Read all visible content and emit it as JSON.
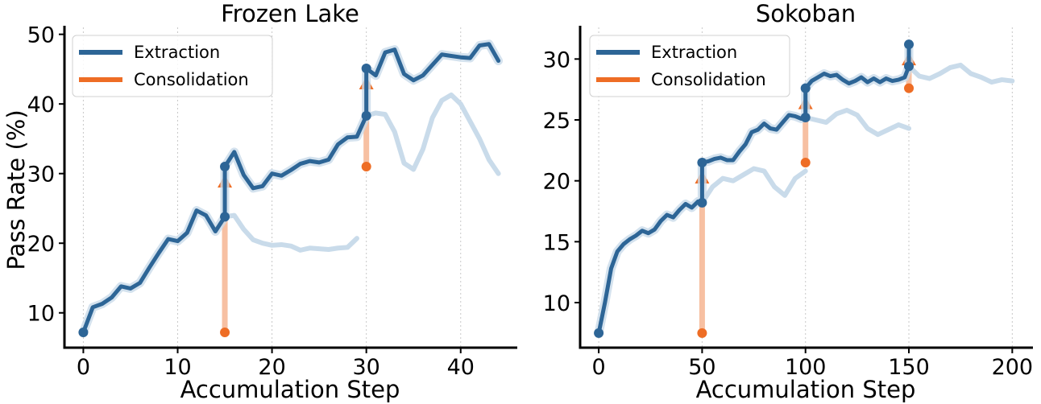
{
  "colors": {
    "extraction": "#2d6596",
    "extraction_faded": "#c9dbea",
    "consolidation": "#ee6d25",
    "consolidation_faded": "#f7c0a2",
    "grid": "#c8c8c8",
    "axis": "#000000"
  },
  "chart_data": [
    {
      "type": "line",
      "title": "Frozen Lake",
      "xlabel": "Accumulation Step",
      "ylabel": "Pass Rate (%)",
      "xlim": [
        -2,
        46
      ],
      "ylim": [
        5,
        51
      ],
      "xticks": [
        0,
        10,
        20,
        30,
        40
      ],
      "yticks": [
        10,
        20,
        30,
        40,
        50
      ],
      "grid": "x-dotted",
      "legend": {
        "position": "top-left",
        "entries": [
          "Extraction",
          "Consolidation"
        ]
      },
      "series": [
        {
          "name": "Extraction",
          "x": [
            0,
            1,
            2,
            3,
            4,
            5,
            6,
            7,
            8,
            9,
            10,
            11,
            12,
            13,
            14,
            15,
            15,
            16,
            17,
            18,
            19,
            20,
            21,
            22,
            23,
            24,
            25,
            26,
            27,
            28,
            29,
            30,
            30,
            31,
            32,
            33,
            34,
            35,
            36,
            37,
            38,
            39,
            40,
            41,
            42,
            43,
            44
          ],
          "y": [
            7.2,
            10.8,
            11.3,
            12.2,
            13.8,
            13.5,
            14.3,
            16.5,
            18.6,
            20.6,
            20.3,
            21.5,
            24.7,
            24.0,
            21.7,
            23.8,
            31.0,
            33.1,
            29.8,
            27.9,
            28.2,
            30.0,
            29.7,
            30.5,
            31.4,
            31.8,
            31.6,
            32.0,
            34.2,
            35.2,
            35.3,
            38.3,
            45.1,
            44.1,
            47.4,
            47.8,
            44.3,
            43.4,
            44.1,
            45.6,
            47.1,
            46.9,
            46.7,
            46.6,
            48.4,
            48.6,
            46.2
          ]
        },
        {
          "name": "Extraction (without consolidation)",
          "faded": true,
          "x": [
            15,
            16,
            17,
            18,
            19,
            20,
            21,
            22,
            23,
            24,
            25,
            26,
            27,
            28,
            29
          ],
          "y": [
            23.8,
            24.0,
            22.0,
            20.5,
            20.0,
            19.7,
            19.8,
            19.6,
            19.0,
            19.3,
            19.2,
            19.1,
            19.3,
            19.4,
            20.7
          ]
        },
        {
          "name": "Extraction (without consolidation)",
          "faded": true,
          "x": [
            30,
            31,
            32,
            33,
            34,
            35,
            36,
            37,
            38,
            39,
            40,
            41,
            42,
            43,
            44
          ],
          "y": [
            38.3,
            38.7,
            38.5,
            36.0,
            31.5,
            30.6,
            33.5,
            38.0,
            40.5,
            41.3,
            40.0,
            37.5,
            35.0,
            32.0,
            30.0
          ]
        }
      ],
      "consolidation": [
        {
          "x": 15,
          "from": 7.2,
          "to": 31.0,
          "jump_from": 23.8
        },
        {
          "x": 30,
          "from": 31.0,
          "to": 45.1,
          "jump_from": 38.3
        }
      ]
    },
    {
      "type": "line",
      "title": "Sokoban",
      "xlabel": "Accumulation Step",
      "ylabel": "",
      "xlim": [
        -9,
        210
      ],
      "ylim": [
        6.3,
        32.6
      ],
      "xticks": [
        0,
        50,
        100,
        150,
        200
      ],
      "yticks": [
        10,
        15,
        20,
        25,
        30
      ],
      "grid": "x-dotted",
      "legend": {
        "position": "top-left",
        "entries": [
          "Extraction",
          "Consolidation"
        ]
      },
      "series": [
        {
          "name": "Extraction",
          "x": [
            0,
            3,
            6,
            9,
            12,
            15,
            18,
            21,
            24,
            27,
            30,
            33,
            36,
            39,
            42,
            45,
            48,
            50,
            50,
            53,
            56,
            59,
            62,
            65,
            68,
            71,
            74,
            77,
            80,
            83,
            86,
            89,
            92,
            95,
            98,
            100,
            100,
            103,
            106,
            109,
            112,
            115,
            118,
            121,
            124,
            127,
            130,
            133,
            136,
            139,
            142,
            145,
            148,
            150,
            150
          ],
          "y": [
            7.5,
            10.0,
            12.8,
            14.2,
            14.8,
            15.2,
            15.5,
            15.9,
            15.7,
            16.0,
            16.7,
            17.2,
            17.0,
            17.6,
            18.1,
            17.8,
            18.3,
            18.2,
            21.5,
            21.6,
            21.8,
            21.9,
            21.7,
            21.7,
            22.4,
            23.0,
            24.0,
            24.2,
            24.7,
            24.3,
            24.2,
            24.8,
            25.4,
            25.3,
            25.1,
            25.2,
            27.6,
            28.2,
            28.5,
            28.8,
            28.6,
            28.7,
            28.3,
            28.0,
            28.2,
            28.5,
            28.1,
            28.4,
            28.1,
            28.4,
            28.2,
            28.3,
            28.5,
            29.4,
            31.2
          ]
        },
        {
          "name": "Extraction (without consolidation)",
          "faded": true,
          "x": [
            50,
            55,
            60,
            65,
            70,
            75,
            80,
            85,
            90,
            95,
            100
          ],
          "y": [
            18.2,
            19.5,
            20.2,
            20.0,
            20.5,
            21.0,
            20.8,
            19.5,
            18.8,
            20.2,
            20.8
          ]
        },
        {
          "name": "Extraction (without consolidation)",
          "faded": true,
          "x": [
            100,
            105,
            110,
            115,
            120,
            125,
            130,
            135,
            140,
            145,
            150
          ],
          "y": [
            25.2,
            25.0,
            24.8,
            25.5,
            25.8,
            25.4,
            24.3,
            23.8,
            24.2,
            24.6,
            24.3
          ]
        },
        {
          "name": "Extraction (without consolidation)",
          "faded": true,
          "x": [
            150,
            155,
            160,
            165,
            170,
            175,
            180,
            185,
            190,
            195,
            200
          ],
          "y": [
            29.4,
            28.6,
            28.4,
            28.8,
            29.3,
            29.5,
            28.8,
            28.5,
            28.1,
            28.3,
            28.2
          ]
        }
      ],
      "consolidation": [
        {
          "x": 50,
          "from": 7.5,
          "to": 21.5,
          "jump_from": 18.2
        },
        {
          "x": 100,
          "from": 21.5,
          "to": 27.6,
          "jump_from": 25.2
        },
        {
          "x": 150,
          "from": 27.6,
          "to": 31.2,
          "jump_from": 29.4
        }
      ]
    }
  ]
}
